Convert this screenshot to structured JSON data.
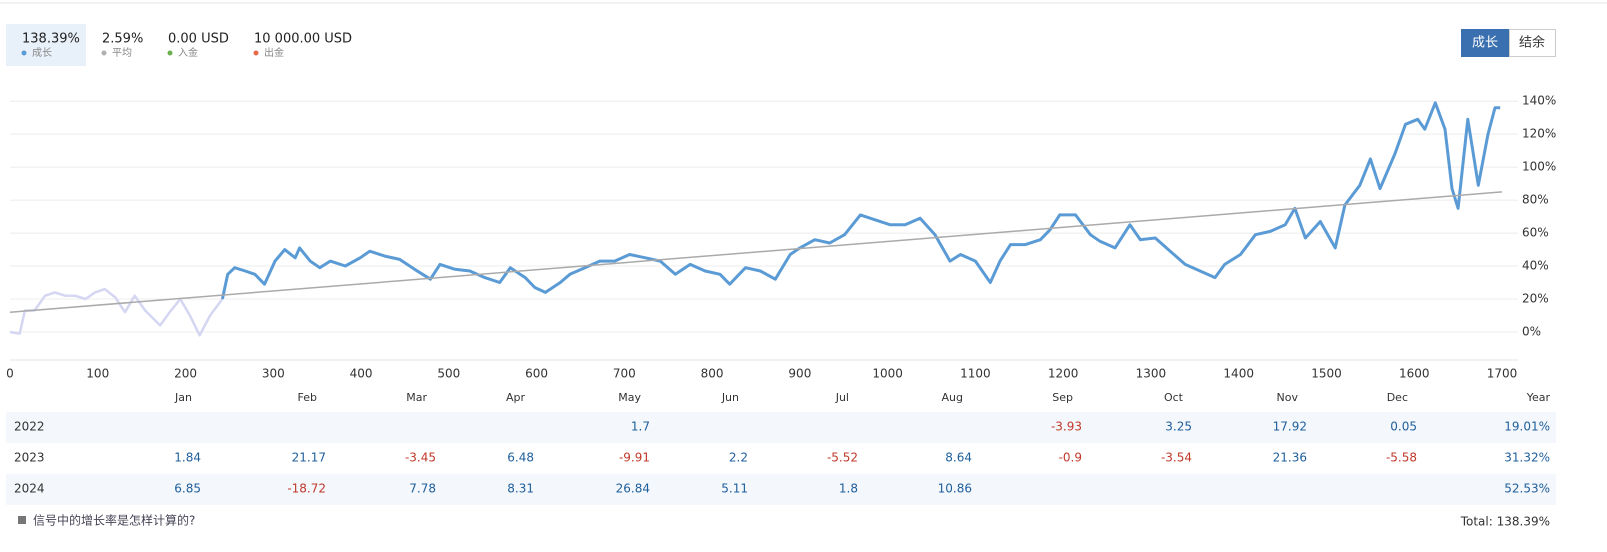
{
  "stats": [
    {
      "value": "138.39%",
      "label": "成长",
      "color": "#5b9bd5"
    },
    {
      "value": "2.59%",
      "label": "平均",
      "color": "#b0b0b0"
    },
    {
      "value": "0.00 USD",
      "label": "入金",
      "color": "#6ab04c"
    },
    {
      "value": "10 000.00 USD",
      "label": "出金",
      "color": "#e8684a"
    }
  ],
  "toggle": [
    "成长",
    "结余"
  ],
  "chart_data": {
    "type": "line",
    "xlim": [
      0,
      1700
    ],
    "xticks": [
      0,
      100,
      200,
      300,
      400,
      500,
      600,
      700,
      800,
      900,
      1000,
      1100,
      1200,
      1300,
      1400,
      1500,
      1600,
      1700
    ],
    "ylim": [
      -17,
      148
    ],
    "yticks": [
      {
        "value": 0,
        "label": "0%"
      },
      {
        "value": 20,
        "label": "20%"
      },
      {
        "value": 40,
        "label": "40%"
      },
      {
        "value": 60,
        "label": "60%"
      },
      {
        "value": 80,
        "label": "80%"
      },
      {
        "value": 100,
        "label": "100%"
      },
      {
        "value": 120,
        "label": "120%"
      },
      {
        "value": 140,
        "label": "140%"
      }
    ],
    "grid": true,
    "series": [
      {
        "color": "#d4d6f2",
        "width": 2.5,
        "x": [
          0,
          11,
          17,
          28,
          40,
          51,
          63,
          74,
          86,
          97,
          108,
          120,
          131,
          142,
          154,
          171,
          182,
          194,
          205,
          216,
          228,
          242
        ],
        "values": [
          0,
          -1,
          13,
          13,
          22,
          24,
          22,
          22,
          20,
          24,
          26,
          21,
          12,
          22,
          13,
          4,
          12,
          20,
          10,
          -2,
          10,
          20
        ]
      },
      {
        "color": "#5b9bd5",
        "width": 3,
        "x": [
          242,
          248,
          256,
          268,
          279,
          290,
          302,
          313,
          325,
          330,
          342,
          353,
          365,
          382,
          399,
          410,
          427,
          444,
          461,
          479,
          490,
          507,
          524,
          541,
          558,
          570,
          587,
          598,
          610,
          627,
          638,
          655,
          672,
          689,
          706,
          724,
          741,
          758,
          775,
          792,
          809,
          820,
          838,
          855,
          872,
          889,
          900,
          917,
          934,
          951,
          969,
          986,
          1003,
          1020,
          1037,
          1054,
          1071,
          1083,
          1100,
          1117,
          1128,
          1140,
          1157,
          1174,
          1185,
          1196,
          1214,
          1231,
          1242,
          1259,
          1276,
          1288,
          1305,
          1322,
          1339,
          1356,
          1373,
          1384,
          1402,
          1419,
          1436,
          1453,
          1464,
          1476,
          1493,
          1510,
          1521,
          1538,
          1550,
          1561,
          1578,
          1590,
          1604,
          1612,
          1624,
          1635,
          1643,
          1650,
          1661,
          1673,
          1684,
          1692,
          1698
        ],
        "values": [
          20,
          35,
          39,
          37,
          35,
          29,
          43,
          50,
          45,
          51,
          43,
          39,
          43,
          40,
          45,
          49,
          46,
          44,
          38,
          32,
          41,
          38,
          37,
          33,
          30,
          39,
          33,
          27,
          24,
          30,
          35,
          39,
          43,
          43,
          47,
          45,
          43,
          35,
          41,
          37,
          35,
          29,
          39,
          37,
          32,
          47,
          51,
          56,
          54,
          59,
          71,
          68,
          65,
          65,
          69,
          59,
          43,
          47,
          43,
          30,
          43,
          53,
          53,
          56,
          62,
          71,
          71,
          59,
          55,
          51,
          65,
          56,
          57,
          49,
          41,
          37,
          33,
          41,
          47,
          59,
          61,
          65,
          75,
          57,
          67,
          51,
          77,
          89,
          105,
          87,
          108,
          126,
          129,
          123,
          139,
          123,
          87,
          75,
          129,
          89,
          120,
          136,
          136
        ]
      },
      {
        "color": "#aaaaaa",
        "width": 1.5,
        "x": [
          0,
          1700
        ],
        "values": [
          12,
          85
        ]
      }
    ]
  },
  "returns": {
    "columns": [
      "Jan",
      "Feb",
      "Mar",
      "Apr",
      "May",
      "Jun",
      "Jul",
      "Aug",
      "Sep",
      "Oct",
      "Nov",
      "Dec",
      "Year"
    ],
    "rows": [
      {
        "year": "2022",
        "months": [
          null,
          null,
          null,
          null,
          1.7,
          null,
          null,
          null,
          -3.93,
          3.25,
          17.92,
          0.05
        ],
        "total": "19.01%"
      },
      {
        "year": "2023",
        "months": [
          1.84,
          21.17,
          -3.45,
          6.48,
          -9.91,
          2.2,
          -5.52,
          8.64,
          -0.9,
          -3.54,
          21.36,
          -5.58
        ],
        "total": "31.32%"
      },
      {
        "year": "2024",
        "months": [
          6.85,
          -18.72,
          7.78,
          8.31,
          26.84,
          5.11,
          1.8,
          10.86,
          null,
          null,
          null,
          null
        ],
        "total": "52.53%"
      }
    ]
  },
  "footer": {
    "link": "信号中的增长率是怎样计算的?",
    "total": "Total: 138.39%"
  }
}
